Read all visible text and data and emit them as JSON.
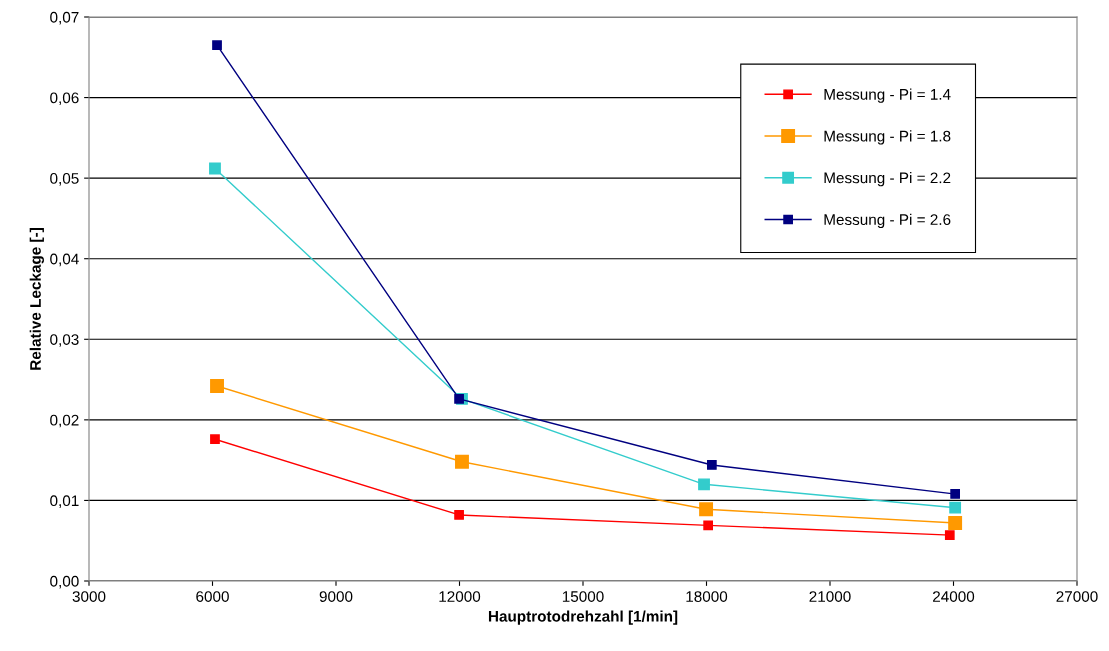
{
  "chart_data": {
    "type": "line",
    "xlabel": "Hauptrotodrehzahl [1/min]",
    "ylabel": "Relative Leckage [-]",
    "xlim": [
      3000,
      27000
    ],
    "xticks": [
      3000,
      6000,
      9000,
      12000,
      15000,
      18000,
      21000,
      24000,
      27000
    ],
    "ylim": [
      0,
      0.07
    ],
    "yticks": [
      {
        "value": 0,
        "label": "0,00"
      },
      {
        "value": 0.01,
        "label": "0,01"
      },
      {
        "value": 0.02,
        "label": "0,02"
      },
      {
        "value": 0.03,
        "label": "0,03"
      },
      {
        "value": 0.04,
        "label": "0,04"
      },
      {
        "value": 0.05,
        "label": "0,05"
      },
      {
        "value": 0.06,
        "label": "0,06"
      },
      {
        "value": 0.07,
        "label": "0,07"
      }
    ],
    "grid": "y",
    "legend": "top right",
    "marker": "square",
    "line_style": "solid",
    "series": [
      {
        "name": "Messung - Pi = 1.4",
        "color": "#ff0000",
        "x": [
          6060,
          11990,
          18040,
          23910
        ],
        "values": [
          0.0176,
          0.0082,
          0.0069,
          0.0057
        ]
      },
      {
        "name": "Messung - Pi = 1.8",
        "color": "#ff9900",
        "x": [
          6110,
          12060,
          17990,
          24040
        ],
        "values": [
          0.0242,
          0.0148,
          0.0089,
          0.0072
        ]
      },
      {
        "name": "Messung - Pi = 2.2",
        "color": "#33cccc",
        "x": [
          6060,
          12060,
          17940,
          24040
        ],
        "values": [
          0.0512,
          0.0226,
          0.012,
          0.0091
        ]
      },
      {
        "name": "Messung - Pi = 2.6",
        "color": "#000080",
        "x": [
          6110,
          11990,
          18130,
          24040
        ],
        "values": [
          0.0665,
          0.0226,
          0.0144,
          0.0108
        ]
      }
    ]
  }
}
